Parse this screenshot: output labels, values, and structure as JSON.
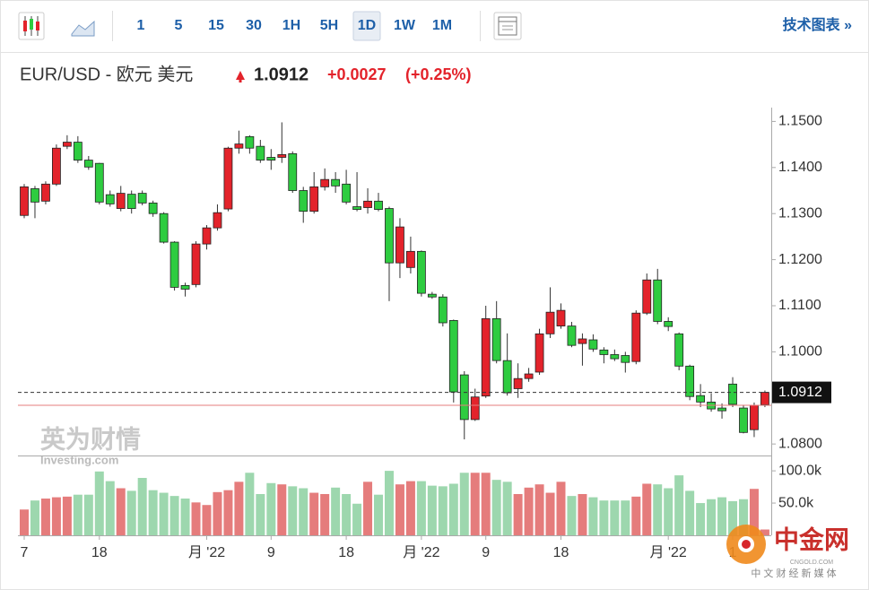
{
  "toolbar": {
    "intervals": [
      "1",
      "5",
      "15",
      "30",
      "1H",
      "5H",
      "1D",
      "1W",
      "1M"
    ],
    "selected_interval": "1D",
    "link": "技术图表 »"
  },
  "chart_data": {
    "type": "candlestick",
    "title": "EUR/USD - 欧元 美元",
    "last_price": 1.0912,
    "change": "+0.0027",
    "change_pct": "(+0.25%)",
    "reference_line": 1.0884,
    "categories": [
      "7",
      null,
      null,
      null,
      null,
      null,
      null,
      "18",
      null,
      null,
      null,
      null,
      null,
      null,
      null,
      null,
      null,
      "月 '22",
      null,
      null,
      null,
      null,
      null,
      "9",
      null,
      null,
      null,
      null,
      null,
      null,
      "18",
      null,
      null,
      null,
      null,
      null,
      null,
      "月 '22",
      null,
      null,
      null,
      null,
      null,
      "9",
      null,
      null,
      null,
      null,
      null,
      null,
      "18",
      null,
      null,
      null,
      null,
      null,
      null,
      null,
      null,
      null,
      "月 '22",
      null,
      null,
      null,
      null,
      null,
      "1",
      null,
      null,
      null
    ],
    "open": [
      1.1296,
      1.1354,
      1.1327,
      1.1364,
      1.1446,
      1.1455,
      1.1416,
      1.1409,
      1.1341,
      1.1311,
      1.1342,
      1.1344,
      1.1323,
      1.13,
      1.1238,
      1.1144,
      1.1146,
      1.1234,
      1.1269,
      1.131,
      1.1442,
      1.1467,
      1.1446,
      1.1422,
      1.1422,
      1.143,
      1.135,
      1.1305,
      1.1358,
      1.1374,
      1.1364,
      1.1315,
      1.1313,
      1.1327,
      1.1311,
      1.1193,
      1.1183,
      1.1218,
      1.1125,
      1.1119,
      1.1068,
      1.095,
      1.0853,
      1.0904,
      1.1072,
      1.0981,
      1.092,
      1.0942,
      1.0956,
      1.1039,
      1.1056,
      1.1056,
      1.1018,
      1.1026,
      1.1004,
      1.0994,
      1.0992,
      1.0979,
      1.1084,
      1.1156,
      1.1066,
      1.1039,
      1.0969,
      1.0905,
      1.0891,
      1.0878,
      1.093,
      1.0878,
      1.0831,
      1.0885
    ],
    "high": [
      1.1364,
      1.136,
      1.137,
      1.145,
      1.147,
      1.1468,
      1.1425,
      1.141,
      1.135,
      1.136,
      1.135,
      1.135,
      1.1328,
      1.1303,
      1.124,
      1.115,
      1.124,
      1.1275,
      1.132,
      1.1445,
      1.148,
      1.147,
      1.146,
      1.144,
      1.1498,
      1.1435,
      1.1358,
      1.139,
      1.1398,
      1.139,
      1.1395,
      1.139,
      1.1355,
      1.1345,
      1.1315,
      1.129,
      1.125,
      1.122,
      1.113,
      1.1125,
      1.107,
      1.0958,
      1.092,
      1.11,
      1.111,
      1.104,
      1.0975,
      1.0965,
      1.105,
      1.114,
      1.1105,
      1.1065,
      1.104,
      1.1038,
      1.101,
      1.1005,
      1.1,
      1.109,
      1.117,
      1.118,
      1.1075,
      1.1042,
      1.0972,
      1.093,
      1.091,
      1.0888,
      1.0945,
      1.0885,
      1.089,
      1.0916
    ],
    "low": [
      1.129,
      1.129,
      1.132,
      1.136,
      1.144,
      1.141,
      1.1395,
      1.132,
      1.1315,
      1.1305,
      1.13,
      1.1318,
      1.1293,
      1.1235,
      1.1133,
      1.112,
      1.114,
      1.1222,
      1.1263,
      1.1305,
      1.143,
      1.143,
      1.141,
      1.1395,
      1.141,
      1.1345,
      1.128,
      1.13,
      1.135,
      1.1345,
      1.132,
      1.1305,
      1.13,
      1.1305,
      1.111,
      1.116,
      1.117,
      1.112,
      1.1115,
      1.1055,
      1.089,
      1.081,
      1.085,
      1.09,
      1.0975,
      1.0905,
      1.09,
      1.0935,
      1.095,
      1.103,
      1.105,
      1.101,
      1.097,
      1.1,
      1.0975,
      1.098,
      1.0955,
      1.0973,
      1.108,
      1.106,
      1.1045,
      1.096,
      1.0895,
      1.088,
      1.087,
      1.0855,
      1.088,
      1.0823,
      1.0815,
      1.088
    ],
    "close": [
      1.1358,
      1.1325,
      1.1364,
      1.1442,
      1.1455,
      1.1416,
      1.1401,
      1.1325,
      1.1321,
      1.1344,
      1.1311,
      1.1323,
      1.13,
      1.1238,
      1.114,
      1.1136,
      1.1234,
      1.1269,
      1.1302,
      1.1442,
      1.1451,
      1.1442,
      1.1416,
      1.1416,
      1.1428,
      1.135,
      1.1305,
      1.1358,
      1.1374,
      1.136,
      1.1325,
      1.1309,
      1.1327,
      1.1309,
      1.1193,
      1.1271,
      1.1218,
      1.1127,
      1.1119,
      1.1063,
      1.0913,
      1.0853,
      1.0902,
      1.1072,
      1.0981,
      1.0911,
      1.0942,
      1.0952,
      1.1039,
      1.1086,
      1.109,
      1.1014,
      1.1028,
      1.1006,
      1.0994,
      1.0985,
      1.0977,
      1.1084,
      1.1156,
      1.1066,
      1.1055,
      1.0969,
      1.0903,
      1.0891,
      1.0876,
      1.0872,
      1.0886,
      1.0825,
      1.0884,
      1.0912
    ],
    "volume": [
      40000,
      54000,
      57000,
      59000,
      60000,
      63000,
      63000,
      99000,
      84000,
      73000,
      69000,
      89000,
      70000,
      66000,
      61000,
      57000,
      51000,
      47000,
      67000,
      70000,
      83000,
      97000,
      64000,
      81000,
      79000,
      76000,
      73000,
      66000,
      64000,
      74000,
      64000,
      49000,
      83000,
      63000,
      100000,
      79000,
      84000,
      84000,
      77000,
      76000,
      80000,
      97000,
      97000,
      97000,
      86000,
      83000,
      64000,
      74000,
      79000,
      66000,
      83000,
      61000,
      64000,
      59000,
      54000,
      54000,
      54000,
      60000,
      80000,
      79000,
      73000,
      93000,
      69000,
      50000,
      56000,
      59000,
      53000,
      56000,
      72000,
      9000
    ],
    "up_color": "#e3232b",
    "down_color": "#2ecc40",
    "volume_up_color": "#e57c7c",
    "volume_down_color": "#9dd7ae",
    "ylim": [
      1.0775,
      1.153
    ],
    "yticks": [
      {
        "value": 1.15,
        "label": "1.1500"
      },
      {
        "value": 1.14,
        "label": "1.1400"
      },
      {
        "value": 1.13,
        "label": "1.1300"
      },
      {
        "value": 1.12,
        "label": "1.1200"
      },
      {
        "value": 1.11,
        "label": "1.1100"
      },
      {
        "value": 1.1,
        "label": "1.1000"
      },
      {
        "value": 1.08,
        "label": "1.0800"
      }
    ],
    "y2lim": [
      0,
      121000
    ],
    "y2ticks": [
      {
        "value": 100000,
        "label": "100.0k"
      },
      {
        "value": 50000,
        "label": "50.0k"
      }
    ]
  },
  "watermark": {
    "cn": "英为财情",
    "en": "Investing.com"
  },
  "site_logo": {
    "name": "中金网",
    "url": "CNGOLD.COM",
    "slogan": "中 文 财 经 新 媒 体"
  }
}
